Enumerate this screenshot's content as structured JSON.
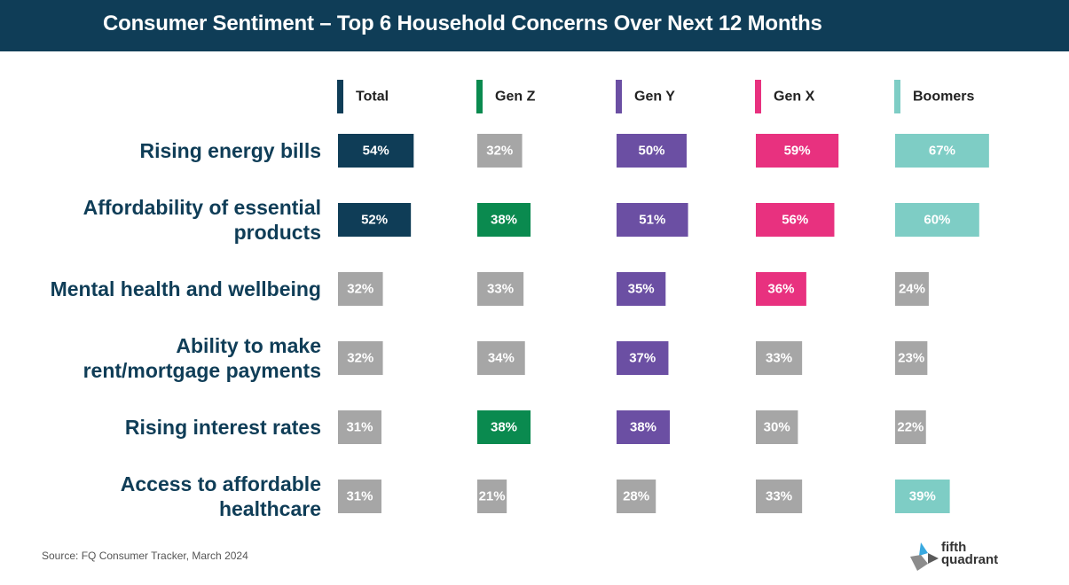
{
  "page_title": "Consumer Sentiment – Top 6 Household Concerns Over Next 12 Months",
  "source": "Source: FQ Consumer Tracker, March 2024",
  "logo": {
    "icon": "fifth-quadrant-logo-icon",
    "line1": "fifth",
    "line2": "quadrant"
  },
  "colors": {
    "header_bg": "#0f3d57",
    "neutral": "#a6a6a6",
    "label_text": "#0f3d57"
  },
  "chart_data": {
    "type": "table",
    "title": "Consumer Sentiment – Top 6 Household Concerns Over Next 12 Months",
    "value_unit": "%",
    "value_max": 100,
    "categories": [
      [
        "Rising energy bills"
      ],
      [
        "Affordability of essential",
        "products"
      ],
      [
        "Mental health and wellbeing"
      ],
      [
        "Ability to make",
        "rent/mortgage payments"
      ],
      [
        "Rising interest rates"
      ],
      [
        "Access to affordable",
        "healthcare"
      ]
    ],
    "series": [
      {
        "name": "Total",
        "color": "#0f3d57",
        "values": [
          54,
          52,
          32,
          32,
          31,
          31
        ],
        "highlighted": [
          true,
          true,
          false,
          false,
          false,
          false
        ]
      },
      {
        "name": "Gen Z",
        "color": "#0a8a4f",
        "values": [
          32,
          38,
          33,
          34,
          38,
          21
        ],
        "highlighted": [
          false,
          true,
          false,
          false,
          true,
          false
        ]
      },
      {
        "name": "Gen Y",
        "color": "#6b4fa3",
        "values": [
          50,
          51,
          35,
          37,
          38,
          28
        ],
        "highlighted": [
          true,
          true,
          true,
          true,
          true,
          false
        ]
      },
      {
        "name": "Gen X",
        "color": "#e8317f",
        "values": [
          59,
          56,
          36,
          33,
          30,
          33
        ],
        "highlighted": [
          true,
          true,
          true,
          false,
          false,
          false
        ]
      },
      {
        "name": "Boomers",
        "color": "#7ecdc5",
        "values": [
          67,
          60,
          24,
          23,
          22,
          39
        ],
        "highlighted": [
          true,
          true,
          false,
          false,
          false,
          true
        ]
      }
    ]
  }
}
